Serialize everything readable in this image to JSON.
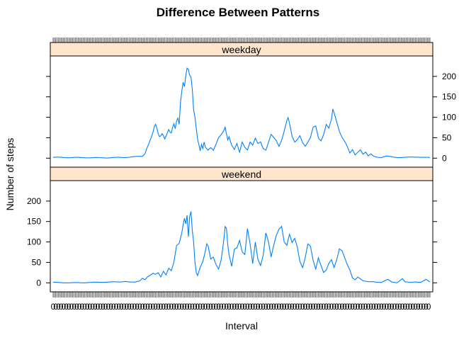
{
  "chart_data": {
    "type": "line",
    "title": "Difference Between Patterns",
    "xlabel": "Interval",
    "ylabel": "Number of steps",
    "ylim": [
      -22,
      250
    ],
    "yticks": [
      0,
      50,
      100,
      150,
      200
    ],
    "line_color": "#0080ff",
    "strip_color": "#ffe5cc",
    "x_tick_label": "0",
    "n_intervals": 288,
    "panels": [
      {
        "name": "weekday",
        "keypoints": [
          [
            0,
            2
          ],
          [
            40,
            1
          ],
          [
            55,
            2
          ],
          [
            60,
            3
          ],
          [
            65,
            4
          ],
          [
            68,
            5
          ],
          [
            69,
            8
          ],
          [
            70,
            12
          ],
          [
            71,
            22
          ],
          [
            72,
            30
          ],
          [
            74,
            45
          ],
          [
            76,
            60
          ],
          [
            77,
            73
          ],
          [
            78,
            78
          ],
          [
            79,
            70
          ],
          [
            80,
            58
          ],
          [
            81,
            52
          ],
          [
            82,
            55
          ],
          [
            83,
            62
          ],
          [
            84,
            58
          ],
          [
            85,
            50
          ],
          [
            86,
            57
          ],
          [
            87,
            65
          ],
          [
            88,
            72
          ],
          [
            89,
            64
          ],
          [
            90,
            60
          ],
          [
            91,
            72
          ],
          [
            92,
            80
          ],
          [
            93,
            68
          ],
          [
            94,
            86
          ],
          [
            95,
            95
          ],
          [
            96,
            82
          ],
          [
            97,
            138
          ],
          [
            98,
            170
          ],
          [
            99,
            196
          ],
          [
            100,
            186
          ],
          [
            101,
            212
          ],
          [
            102,
            230
          ],
          [
            103,
            222
          ],
          [
            104,
            202
          ],
          [
            105,
            193
          ],
          [
            106,
            160
          ],
          [
            107,
            112
          ],
          [
            108,
            95
          ],
          [
            109,
            70
          ],
          [
            110,
            45
          ],
          [
            111,
            33
          ],
          [
            112,
            18
          ],
          [
            113,
            35
          ],
          [
            114,
            25
          ],
          [
            115,
            42
          ],
          [
            116,
            28
          ],
          [
            118,
            20
          ],
          [
            120,
            25
          ],
          [
            122,
            18
          ],
          [
            124,
            32
          ],
          [
            126,
            50
          ],
          [
            128,
            60
          ],
          [
            130,
            72
          ],
          [
            131,
            80
          ],
          [
            132,
            62
          ],
          [
            133,
            45
          ],
          [
            134,
            52
          ],
          [
            135,
            40
          ],
          [
            136,
            30
          ],
          [
            138,
            20
          ],
          [
            140,
            35
          ],
          [
            142,
            15
          ],
          [
            144,
            42
          ],
          [
            146,
            28
          ],
          [
            148,
            20
          ],
          [
            150,
            38
          ],
          [
            152,
            30
          ],
          [
            154,
            47
          ],
          [
            156,
            36
          ],
          [
            158,
            42
          ],
          [
            160,
            25
          ],
          [
            162,
            20
          ],
          [
            164,
            38
          ],
          [
            166,
            55
          ],
          [
            168,
            48
          ],
          [
            170,
            42
          ],
          [
            172,
            30
          ],
          [
            174,
            46
          ],
          [
            176,
            70
          ],
          [
            178,
            92
          ],
          [
            179,
            97
          ],
          [
            180,
            82
          ],
          [
            182,
            50
          ],
          [
            184,
            38
          ],
          [
            186,
            46
          ],
          [
            188,
            58
          ],
          [
            190,
            40
          ],
          [
            192,
            30
          ],
          [
            194,
            38
          ],
          [
            196,
            48
          ],
          [
            198,
            72
          ],
          [
            200,
            78
          ],
          [
            201,
            66
          ],
          [
            202,
            52
          ],
          [
            204,
            45
          ],
          [
            206,
            60
          ],
          [
            208,
            82
          ],
          [
            210,
            70
          ],
          [
            212,
            90
          ],
          [
            213,
            115
          ],
          [
            214,
            108
          ],
          [
            216,
            90
          ],
          [
            218,
            70
          ],
          [
            220,
            54
          ],
          [
            222,
            42
          ],
          [
            224,
            28
          ],
          [
            226,
            12
          ],
          [
            228,
            20
          ],
          [
            230,
            8
          ],
          [
            232,
            15
          ],
          [
            234,
            22
          ],
          [
            236,
            10
          ],
          [
            238,
            15
          ],
          [
            240,
            5
          ],
          [
            242,
            10
          ],
          [
            244,
            5
          ],
          [
            246,
            3
          ],
          [
            250,
            2
          ],
          [
            254,
            5
          ],
          [
            258,
            3
          ],
          [
            262,
            2
          ],
          [
            270,
            2
          ],
          [
            278,
            3
          ],
          [
            287,
            1
          ]
        ]
      },
      {
        "name": "weekend",
        "keypoints": [
          [
            0,
            1
          ],
          [
            15,
            0
          ],
          [
            30,
            1
          ],
          [
            40,
            2
          ],
          [
            50,
            2
          ],
          [
            55,
            4
          ],
          [
            58,
            2
          ],
          [
            62,
            1
          ],
          [
            66,
            5
          ],
          [
            68,
            12
          ],
          [
            70,
            8
          ],
          [
            72,
            15
          ],
          [
            74,
            18
          ],
          [
            76,
            22
          ],
          [
            78,
            20
          ],
          [
            80,
            25
          ],
          [
            82,
            15
          ],
          [
            84,
            30
          ],
          [
            86,
            20
          ],
          [
            88,
            35
          ],
          [
            90,
            28
          ],
          [
            92,
            48
          ],
          [
            94,
            90
          ],
          [
            96,
            100
          ],
          [
            98,
            130
          ],
          [
            99,
            150
          ],
          [
            100,
            165
          ],
          [
            101,
            148
          ],
          [
            102,
            165
          ],
          [
            103,
            110
          ],
          [
            104,
            155
          ],
          [
            105,
            165
          ],
          [
            106,
            120
          ],
          [
            107,
            95
          ],
          [
            108,
            50
          ],
          [
            109,
            25
          ],
          [
            110,
            18
          ],
          [
            112,
            40
          ],
          [
            114,
            55
          ],
          [
            116,
            80
          ],
          [
            117,
            95
          ],
          [
            118,
            88
          ],
          [
            120,
            55
          ],
          [
            122,
            60
          ],
          [
            124,
            45
          ],
          [
            126,
            35
          ],
          [
            128,
            60
          ],
          [
            130,
            110
          ],
          [
            131,
            140
          ],
          [
            132,
            132
          ],
          [
            133,
            90
          ],
          [
            134,
            65
          ],
          [
            136,
            38
          ],
          [
            138,
            80
          ],
          [
            140,
            88
          ],
          [
            142,
            110
          ],
          [
            144,
            80
          ],
          [
            146,
            70
          ],
          [
            148,
            128
          ],
          [
            150,
            90
          ],
          [
            152,
            45
          ],
          [
            154,
            100
          ],
          [
            156,
            60
          ],
          [
            158,
            45
          ],
          [
            160,
            70
          ],
          [
            162,
            120
          ],
          [
            164,
            95
          ],
          [
            166,
            60
          ],
          [
            168,
            90
          ],
          [
            170,
            120
          ],
          [
            172,
            140
          ],
          [
            174,
            145
          ],
          [
            176,
            100
          ],
          [
            178,
            88
          ],
          [
            180,
            112
          ],
          [
            182,
            95
          ],
          [
            184,
            110
          ],
          [
            186,
            92
          ],
          [
            188,
            55
          ],
          [
            190,
            38
          ],
          [
            192,
            60
          ],
          [
            194,
            90
          ],
          [
            196,
            85
          ],
          [
            198,
            55
          ],
          [
            200,
            35
          ],
          [
            202,
            65
          ],
          [
            204,
            45
          ],
          [
            206,
            25
          ],
          [
            208,
            30
          ],
          [
            210,
            45
          ],
          [
            212,
            55
          ],
          [
            214,
            38
          ],
          [
            216,
            60
          ],
          [
            218,
            88
          ],
          [
            220,
            80
          ],
          [
            222,
            60
          ],
          [
            224,
            42
          ],
          [
            226,
            30
          ],
          [
            228,
            12
          ],
          [
            230,
            8
          ],
          [
            232,
            15
          ],
          [
            234,
            10
          ],
          [
            236,
            5
          ],
          [
            240,
            2
          ],
          [
            244,
            3
          ],
          [
            250,
            1
          ],
          [
            255,
            8
          ],
          [
            258,
            2
          ],
          [
            262,
            1
          ],
          [
            266,
            10
          ],
          [
            268,
            2
          ],
          [
            272,
            1
          ],
          [
            276,
            3
          ],
          [
            280,
            1
          ],
          [
            284,
            8
          ],
          [
            287,
            2
          ]
        ]
      }
    ]
  }
}
